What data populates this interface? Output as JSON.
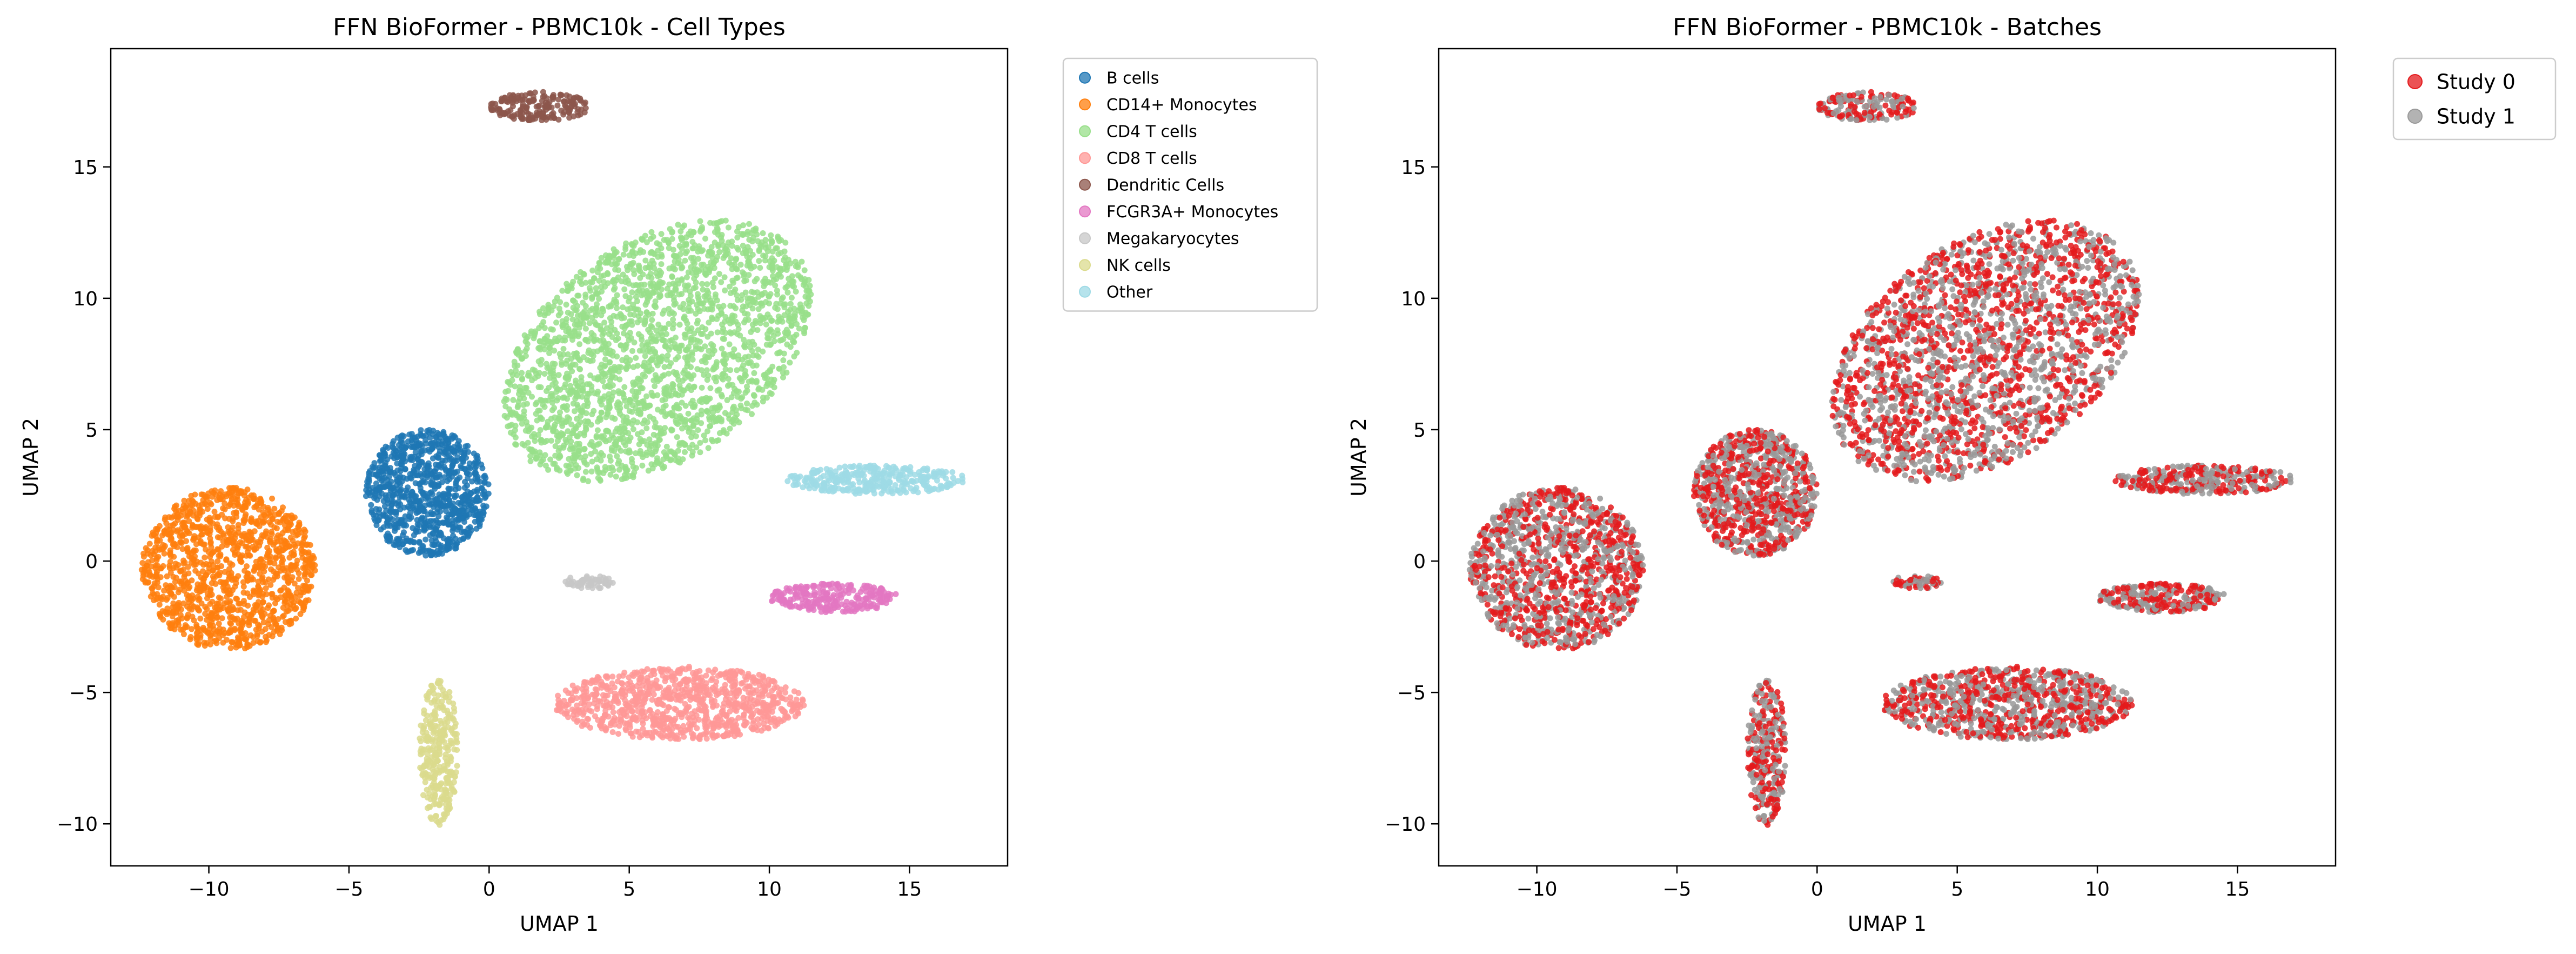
{
  "chart_data": [
    {
      "type": "scatter",
      "title": "FFN BioFormer - PBMC10k - Cell Types",
      "xlabel": "UMAP 1",
      "ylabel": "UMAP 2",
      "xlim": [
        -13.5,
        18.5
      ],
      "ylim": [
        -11.6,
        19.5
      ],
      "xticks": [
        -10,
        -5,
        0,
        5,
        10,
        15
      ],
      "xtick_labels": [
        "−10",
        "−5",
        "0",
        "5",
        "10",
        "15"
      ],
      "yticks": [
        -10,
        -5,
        0,
        5,
        10,
        15
      ],
      "ytick_labels": [
        "−10",
        "−5",
        "0",
        "5",
        "10",
        "15"
      ],
      "grid": false,
      "legend_position": "outside-right",
      "series": [
        {
          "name": "B cells",
          "color": "#1f77b4"
        },
        {
          "name": "CD14+ Monocytes",
          "color": "#ff7f0e"
        },
        {
          "name": "CD4 T cells",
          "color": "#98df8a"
        },
        {
          "name": "CD8 T cells",
          "color": "#ff9896"
        },
        {
          "name": "Dendritic Cells",
          "color": "#8c564b"
        },
        {
          "name": "FCGR3A+ Monocytes",
          "color": "#e377c2"
        },
        {
          "name": "Megakaryocytes",
          "color": "#c7c7c7"
        },
        {
          "name": "NK cells",
          "color": "#dbdb8d"
        },
        {
          "name": "Other",
          "color": "#9edae5"
        }
      ],
      "clusters": [
        {
          "series": "B cells",
          "center": [
            -2.2,
            2.6
          ],
          "radius": [
            2.2,
            2.4
          ],
          "count": 900
        },
        {
          "series": "CD14+ Monocytes",
          "center": [
            -9.3,
            -0.3
          ],
          "radius": [
            3.1,
            3.1
          ],
          "count": 1200
        },
        {
          "series": "CD4 T cells",
          "center": [
            6.0,
            8.0
          ],
          "radius": [
            5.5,
            4.6
          ],
          "count": 2200
        },
        {
          "series": "CD8 T cells",
          "center": [
            6.8,
            -5.4
          ],
          "radius": [
            4.5,
            1.4
          ],
          "count": 900
        },
        {
          "series": "Dendritic Cells",
          "center": [
            1.8,
            17.3
          ],
          "radius": [
            1.8,
            0.55
          ],
          "count": 180
        },
        {
          "series": "FCGR3A+ Monocytes",
          "center": [
            12.3,
            -1.4
          ],
          "radius": [
            2.3,
            0.55
          ],
          "count": 250
        },
        {
          "series": "Megakaryocytes",
          "center": [
            3.6,
            -0.8
          ],
          "radius": [
            1.0,
            0.25
          ],
          "count": 60
        },
        {
          "series": "NK cells",
          "center": [
            -1.8,
            -7.3
          ],
          "radius": [
            0.7,
            2.8
          ],
          "count": 300
        },
        {
          "series": "Other",
          "center": [
            13.8,
            3.1
          ],
          "radius": [
            3.2,
            0.55
          ],
          "count": 320
        }
      ]
    },
    {
      "type": "scatter",
      "title": "FFN BioFormer - PBMC10k - Batches",
      "xlabel": "UMAP 1",
      "ylabel": "UMAP 2",
      "xlim": [
        -13.5,
        18.5
      ],
      "ylim": [
        -11.6,
        19.5
      ],
      "xticks": [
        -10,
        -5,
        0,
        5,
        10,
        15
      ],
      "xtick_labels": [
        "−10",
        "−5",
        "0",
        "5",
        "10",
        "15"
      ],
      "yticks": [
        -10,
        -5,
        0,
        5,
        10,
        15
      ],
      "ytick_labels": [
        "−10",
        "−5",
        "0",
        "5",
        "10",
        "15"
      ],
      "grid": false,
      "legend_position": "outside-right",
      "series": [
        {
          "name": "Study 0",
          "color": "#e41a1c"
        },
        {
          "name": "Study 1",
          "color": "#999999"
        }
      ]
    }
  ]
}
